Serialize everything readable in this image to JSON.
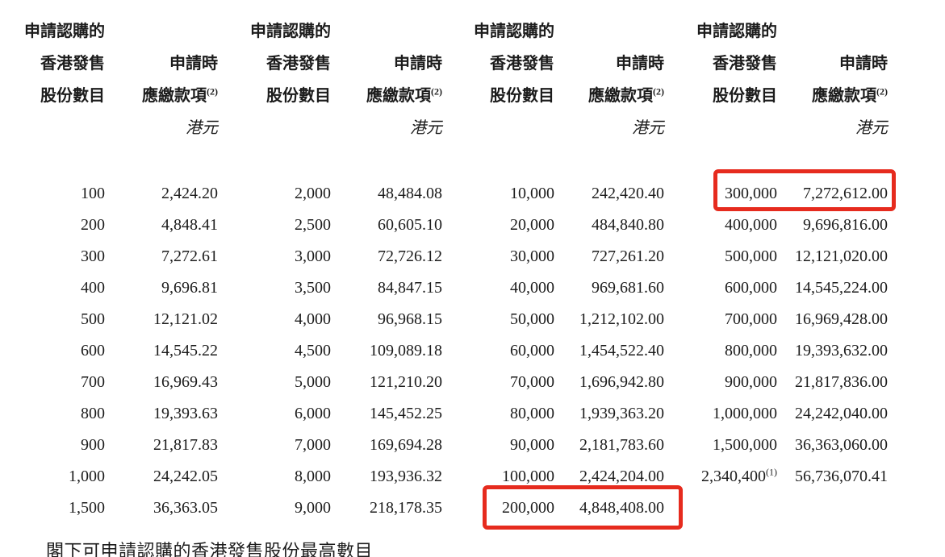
{
  "table": {
    "pairs": [
      {
        "shares_header_lines": [
          "申請認購的",
          "香港發售",
          "股份數目"
        ],
        "amount_header_line1": "申請時",
        "amount_header_line2": "應繳款項",
        "amount_header_footnote": "(2)",
        "currency_label": "港元",
        "rows": [
          {
            "shares": "100",
            "amount": "2,424.20"
          },
          {
            "shares": "200",
            "amount": "4,848.41"
          },
          {
            "shares": "300",
            "amount": "7,272.61"
          },
          {
            "shares": "400",
            "amount": "9,696.81"
          },
          {
            "shares": "500",
            "amount": "12,121.02"
          },
          {
            "shares": "600",
            "amount": "14,545.22"
          },
          {
            "shares": "700",
            "amount": "16,969.43"
          },
          {
            "shares": "800",
            "amount": "19,393.63"
          },
          {
            "shares": "900",
            "amount": "21,817.83"
          },
          {
            "shares": "1,000",
            "amount": "24,242.05"
          },
          {
            "shares": "1,500",
            "amount": "36,363.05"
          }
        ]
      },
      {
        "shares_header_lines": [
          "申請認購的",
          "香港發售",
          "股份數目"
        ],
        "amount_header_line1": "申請時",
        "amount_header_line2": "應繳款項",
        "amount_header_footnote": "(2)",
        "currency_label": "港元",
        "rows": [
          {
            "shares": "2,000",
            "amount": "48,484.08"
          },
          {
            "shares": "2,500",
            "amount": "60,605.10"
          },
          {
            "shares": "3,000",
            "amount": "72,726.12"
          },
          {
            "shares": "3,500",
            "amount": "84,847.15"
          },
          {
            "shares": "4,000",
            "amount": "96,968.15"
          },
          {
            "shares": "4,500",
            "amount": "109,089.18"
          },
          {
            "shares": "5,000",
            "amount": "121,210.20"
          },
          {
            "shares": "6,000",
            "amount": "145,452.25"
          },
          {
            "shares": "7,000",
            "amount": "169,694.28"
          },
          {
            "shares": "8,000",
            "amount": "193,936.32"
          },
          {
            "shares": "9,000",
            "amount": "218,178.35"
          }
        ]
      },
      {
        "shares_header_lines": [
          "申請認購的",
          "香港發售",
          "股份數目"
        ],
        "amount_header_line1": "申請時",
        "amount_header_line2": "應繳款項",
        "amount_header_footnote": "(2)",
        "currency_label": "港元",
        "rows": [
          {
            "shares": "10,000",
            "amount": "242,420.40"
          },
          {
            "shares": "20,000",
            "amount": "484,840.80"
          },
          {
            "shares": "30,000",
            "amount": "727,261.20"
          },
          {
            "shares": "40,000",
            "amount": "969,681.60"
          },
          {
            "shares": "50,000",
            "amount": "1,212,102.00"
          },
          {
            "shares": "60,000",
            "amount": "1,454,522.40"
          },
          {
            "shares": "70,000",
            "amount": "1,696,942.80"
          },
          {
            "shares": "80,000",
            "amount": "1,939,363.20"
          },
          {
            "shares": "90,000",
            "amount": "2,181,783.60"
          },
          {
            "shares": "100,000",
            "amount": "2,424,204.00"
          },
          {
            "shares": "200,000",
            "amount": "4,848,408.00",
            "highlighted": true
          }
        ]
      },
      {
        "shares_header_lines": [
          "申請認購的",
          "香港發售",
          "股份數目"
        ],
        "amount_header_line1": "申請時",
        "amount_header_line2": "應繳款項",
        "amount_header_footnote": "(2)",
        "currency_label": "港元",
        "rows": [
          {
            "shares": "300,000",
            "amount": "7,272,612.00",
            "highlighted": true
          },
          {
            "shares": "400,000",
            "amount": "9,696,816.00"
          },
          {
            "shares": "500,000",
            "amount": "12,121,020.00"
          },
          {
            "shares": "600,000",
            "amount": "14,545,224.00"
          },
          {
            "shares": "700,000",
            "amount": "16,969,428.00"
          },
          {
            "shares": "800,000",
            "amount": "19,393,632.00"
          },
          {
            "shares": "900,000",
            "amount": "21,817,836.00"
          },
          {
            "shares": "1,000,000",
            "amount": "24,242,040.00"
          },
          {
            "shares": "1,500,000",
            "amount": "36,363,060.00"
          },
          {
            "shares": "2,340,400",
            "shares_sup": "(1)",
            "amount": "56,736,070.41"
          }
        ]
      }
    ]
  },
  "highlights": [
    {
      "shares": "300,000",
      "amount": "7,272,612.00"
    },
    {
      "shares": "200,000",
      "amount": "4,848,408.00"
    }
  ],
  "footnote_line": "閣下可申請認購的香港發售股份最高數目",
  "colors": {
    "highlight_red": "#e62b1e",
    "text": "#1c1c1c",
    "background": "#ffffff"
  }
}
